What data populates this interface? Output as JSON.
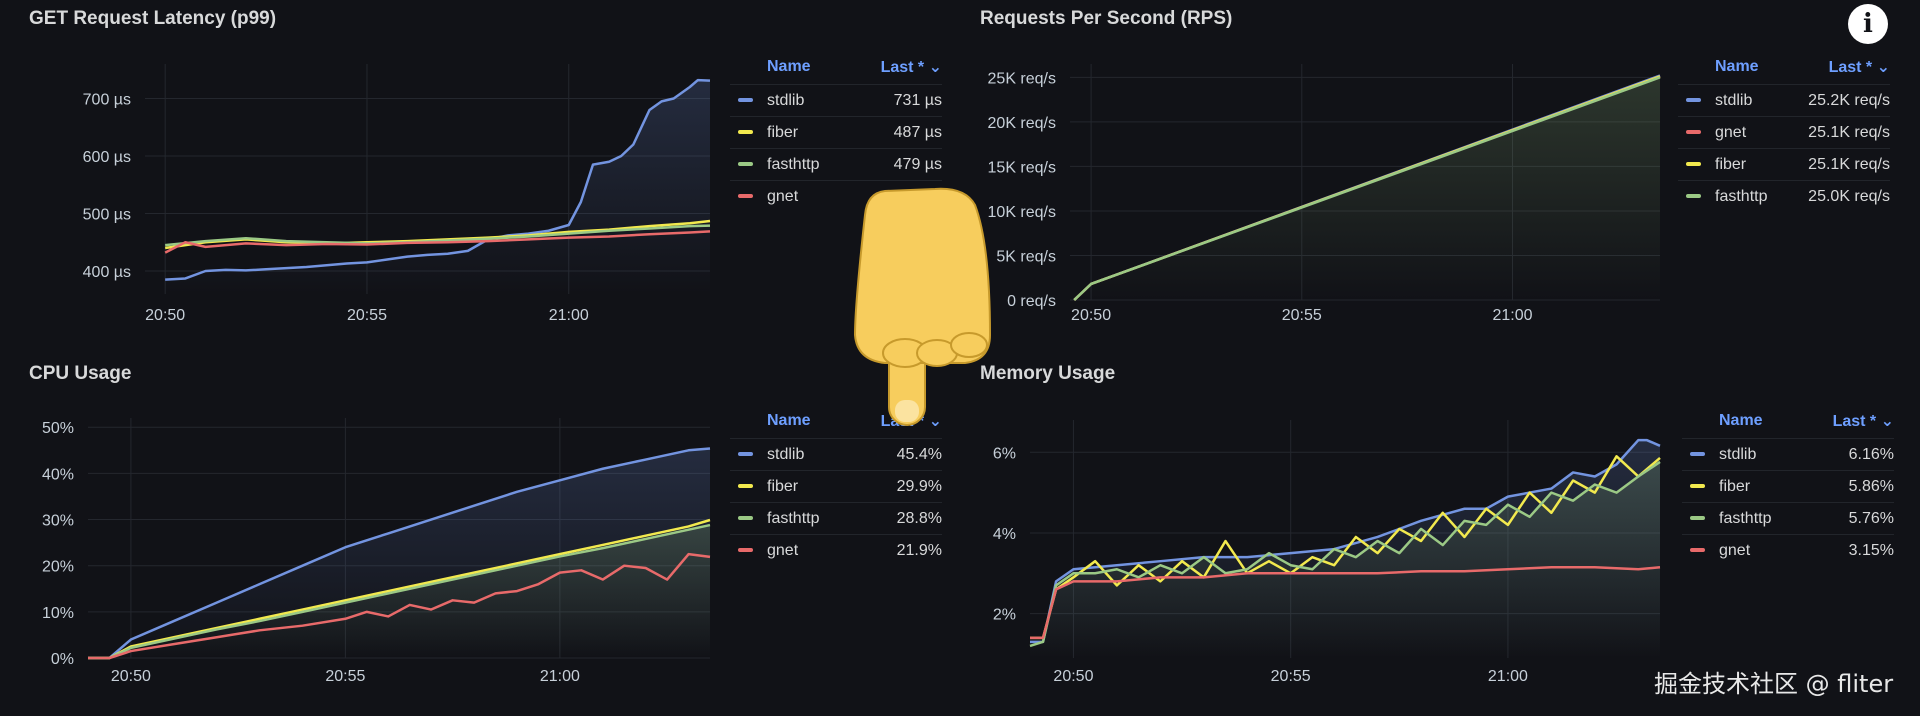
{
  "colors": {
    "stdlib": "#7394e0",
    "fiber": "#f2e94e",
    "fasthttp": "#9bc985",
    "gnet": "#e86a6a",
    "grid": "#24272e",
    "header": "#6e9fff"
  },
  "icons": {
    "info": "info-icon",
    "pointer": "pointing-hand-icon"
  },
  "info_glyph": "i",
  "watermark": "掘金技术社区 @ fliter",
  "panels": [
    {
      "id": "latency",
      "title": "GET Request Latency (p99)",
      "legend": {
        "name_header": "Name",
        "last_header": "Last * ⌄",
        "rows": [
          {
            "name": "stdlib",
            "value": "731 µs",
            "color": "#7394e0"
          },
          {
            "name": "fiber",
            "value": "487 µs",
            "color": "#f2e94e"
          },
          {
            "name": "fasthttp",
            "value": "479 µs",
            "color": "#9bc985"
          },
          {
            "name": "gnet",
            "value": "469 µs",
            "color": "#e86a6a"
          }
        ]
      }
    },
    {
      "id": "rps",
      "title": "Requests Per Second (RPS)",
      "legend": {
        "name_header": "Name",
        "last_header": "Last * ⌄",
        "rows": [
          {
            "name": "stdlib",
            "value": "25.2K req/s",
            "color": "#7394e0"
          },
          {
            "name": "gnet",
            "value": "25.1K req/s",
            "color": "#e86a6a"
          },
          {
            "name": "fiber",
            "value": "25.1K req/s",
            "color": "#f2e94e"
          },
          {
            "name": "fasthttp",
            "value": "25.0K req/s",
            "color": "#9bc985"
          }
        ]
      }
    },
    {
      "id": "cpu",
      "title": "CPU Usage",
      "legend": {
        "name_header": "Name",
        "last_header": "Last * ⌄",
        "rows": [
          {
            "name": "stdlib",
            "value": "45.4%",
            "color": "#7394e0"
          },
          {
            "name": "fiber",
            "value": "29.9%",
            "color": "#f2e94e"
          },
          {
            "name": "fasthttp",
            "value": "28.8%",
            "color": "#9bc985"
          },
          {
            "name": "gnet",
            "value": "21.9%",
            "color": "#e86a6a"
          }
        ]
      }
    },
    {
      "id": "memory",
      "title": "Memory Usage",
      "legend": {
        "name_header": "Name",
        "last_header": "Last * ⌄",
        "rows": [
          {
            "name": "stdlib",
            "value": "6.16%",
            "color": "#7394e0"
          },
          {
            "name": "fiber",
            "value": "5.86%",
            "color": "#f2e94e"
          },
          {
            "name": "fasthttp",
            "value": "5.76%",
            "color": "#9bc985"
          },
          {
            "name": "gnet",
            "value": "3.15%",
            "color": "#e86a6a"
          }
        ]
      }
    }
  ],
  "chart_data": [
    {
      "id": "latency",
      "type": "line",
      "x_ticks": [
        "20:50",
        "20:55",
        "21:00"
      ],
      "x_tick_values": [
        0,
        5,
        10
      ],
      "xlim": [
        -0.5,
        13.5
      ],
      "y_ticks": [
        "400 µs",
        "500 µs",
        "600 µs",
        "700 µs"
      ],
      "y_tick_values": [
        400,
        500,
        600,
        700
      ],
      "ylim": [
        360,
        760
      ],
      "series": [
        {
          "name": "stdlib",
          "color": "#7394e0",
          "fill": true,
          "x": [
            0,
            0.5,
            1,
            1.5,
            2,
            2.5,
            3,
            3.5,
            4,
            4.5,
            5,
            5.5,
            6,
            6.5,
            7,
            7.5,
            8,
            8.5,
            9,
            9.5,
            10,
            10.3,
            10.6,
            11,
            11.3,
            11.6,
            12,
            12.3,
            12.6,
            13,
            13.2,
            13.5
          ],
          "y": [
            385,
            387,
            400,
            402,
            401,
            403,
            405,
            407,
            410,
            413,
            415,
            420,
            425,
            428,
            430,
            435,
            455,
            462,
            465,
            470,
            480,
            520,
            585,
            590,
            600,
            620,
            680,
            695,
            700,
            720,
            732,
            731
          ]
        },
        {
          "name": "fiber",
          "color": "#f2e94e",
          "fill": false,
          "x": [
            0,
            1,
            2,
            3,
            4,
            5,
            6,
            7,
            8,
            9,
            10,
            11,
            12,
            13,
            13.5
          ],
          "y": [
            440,
            450,
            455,
            450,
            448,
            450,
            452,
            455,
            458,
            462,
            468,
            472,
            478,
            483,
            487
          ]
        },
        {
          "name": "fasthttp",
          "color": "#9bc985",
          "fill": false,
          "x": [
            0,
            1,
            2,
            3,
            4,
            5,
            6,
            7,
            8,
            9,
            10,
            11,
            12,
            13,
            13.5
          ],
          "y": [
            445,
            452,
            457,
            452,
            450,
            448,
            450,
            453,
            456,
            460,
            465,
            470,
            474,
            478,
            479
          ]
        },
        {
          "name": "gnet",
          "color": "#e86a6a",
          "fill": false,
          "x": [
            0,
            0.5,
            1,
            2,
            3,
            4,
            5,
            6,
            7,
            8,
            9,
            10,
            11,
            12,
            13,
            13.5
          ],
          "y": [
            432,
            450,
            442,
            448,
            445,
            447,
            446,
            449,
            450,
            452,
            455,
            458,
            460,
            464,
            467,
            469
          ]
        }
      ]
    },
    {
      "id": "rps",
      "type": "area",
      "x_ticks": [
        "20:50",
        "20:55",
        "21:00"
      ],
      "x_tick_values": [
        0,
        5,
        10
      ],
      "xlim": [
        -0.5,
        13.5
      ],
      "y_ticks": [
        "0 req/s",
        "5K req/s",
        "10K req/s",
        "15K req/s",
        "20K req/s",
        "25K req/s"
      ],
      "y_tick_values": [
        0,
        5000,
        10000,
        15000,
        20000,
        25000
      ],
      "ylim": [
        0,
        26500
      ],
      "series": [
        {
          "name": "stdlib",
          "color": "#7394e0",
          "fill": false,
          "x": [
            -0.4,
            0,
            13.5
          ],
          "y": [
            0,
            1800,
            25200
          ]
        },
        {
          "name": "gnet",
          "color": "#e86a6a",
          "fill": false,
          "x": [
            -0.4,
            0,
            13.5
          ],
          "y": [
            0,
            1800,
            25100
          ]
        },
        {
          "name": "fiber",
          "color": "#f2e94e",
          "fill": false,
          "x": [
            -0.4,
            0,
            13.5
          ],
          "y": [
            0,
            1800,
            25100
          ]
        },
        {
          "name": "fasthttp",
          "color": "#9bc985",
          "fill": true,
          "x": [
            -0.4,
            0,
            13.5
          ],
          "y": [
            0,
            1800,
            25000
          ]
        }
      ]
    },
    {
      "id": "cpu",
      "type": "line",
      "x_ticks": [
        "20:50",
        "20:55",
        "21:00"
      ],
      "x_tick_values": [
        0,
        5,
        10
      ],
      "xlim": [
        -1,
        13.5
      ],
      "y_ticks": [
        "0%",
        "10%",
        "20%",
        "30%",
        "40%",
        "50%"
      ],
      "y_tick_values": [
        0,
        10,
        20,
        30,
        40,
        50
      ],
      "ylim": [
        0,
        52
      ],
      "series": [
        {
          "name": "stdlib",
          "color": "#7394e0",
          "fill": true,
          "x": [
            -1,
            -0.5,
            0,
            1,
            2,
            3,
            4,
            5,
            6,
            7,
            8,
            9,
            10,
            11,
            12,
            13,
            13.5
          ],
          "y": [
            0,
            0,
            4,
            8,
            12,
            16,
            20,
            24,
            27,
            30,
            33,
            36,
            38.5,
            41,
            43,
            45,
            45.4
          ]
        },
        {
          "name": "fiber",
          "color": "#f2e94e",
          "fill": false,
          "x": [
            -1,
            -0.5,
            0,
            1,
            2,
            3,
            4,
            5,
            6,
            7,
            8,
            9,
            10,
            11,
            12,
            13,
            13.5
          ],
          "y": [
            0,
            0,
            2.5,
            4.5,
            6.5,
            8.5,
            10.5,
            12.5,
            14.5,
            16.5,
            18.5,
            20.5,
            22.5,
            24.5,
            26.5,
            28.5,
            29.9
          ]
        },
        {
          "name": "fasthttp",
          "color": "#9bc985",
          "fill": true,
          "x": [
            -1,
            -0.5,
            0,
            1,
            2,
            3,
            4,
            5,
            6,
            7,
            8,
            9,
            10,
            11,
            12,
            13,
            13.5
          ],
          "y": [
            0,
            0,
            2.2,
            4.2,
            6.2,
            8,
            10,
            12,
            14,
            16,
            18,
            20,
            22,
            23.8,
            25.8,
            27.8,
            28.8
          ]
        },
        {
          "name": "gnet",
          "color": "#e86a6a",
          "fill": false,
          "x": [
            -1,
            -0.5,
            0,
            1,
            2,
            3,
            4,
            5,
            5.5,
            6,
            6.5,
            7,
            7.5,
            8,
            8.5,
            9,
            9.5,
            10,
            10.5,
            11,
            11.5,
            12,
            12.5,
            13,
            13.5
          ],
          "y": [
            0,
            0,
            1.5,
            3,
            4.5,
            6,
            7,
            8.5,
            10,
            9,
            11.5,
            10.5,
            12.5,
            12,
            14,
            14.5,
            16,
            18.5,
            19,
            17,
            20,
            19.5,
            17,
            22.5,
            21.9
          ]
        }
      ]
    },
    {
      "id": "memory",
      "type": "line",
      "x_ticks": [
        "20:50",
        "20:55",
        "21:00"
      ],
      "x_tick_values": [
        0,
        5,
        10
      ],
      "xlim": [
        -1,
        13.5
      ],
      "y_ticks": [
        "2%",
        "4%",
        "6%"
      ],
      "y_tick_values": [
        2,
        4,
        6
      ],
      "ylim": [
        0.9,
        6.8
      ],
      "series": [
        {
          "name": "stdlib",
          "color": "#7394e0",
          "fill": true,
          "x": [
            -1,
            -0.7,
            -0.4,
            0,
            1,
            2,
            3,
            4,
            5,
            6,
            7,
            8,
            9,
            9.5,
            10,
            11,
            11.5,
            12,
            12.5,
            13,
            13.2,
            13.5
          ],
          "y": [
            1.3,
            1.3,
            2.8,
            3.1,
            3.2,
            3.3,
            3.4,
            3.4,
            3.5,
            3.6,
            3.9,
            4.3,
            4.6,
            4.6,
            4.9,
            5.1,
            5.5,
            5.4,
            5.7,
            6.3,
            6.3,
            6.16
          ]
        },
        {
          "name": "fiber",
          "color": "#f2e94e",
          "fill": false,
          "x": [
            -1,
            -0.7,
            -0.4,
            0,
            0.5,
            1,
            1.5,
            2,
            2.5,
            3,
            3.5,
            4,
            4.5,
            5,
            5.5,
            6,
            6.5,
            7,
            7.5,
            8,
            8.5,
            9,
            9.5,
            10,
            10.5,
            11,
            11.5,
            12,
            12.5,
            13,
            13.5
          ],
          "y": [
            1.4,
            1.4,
            2.6,
            2.9,
            3.3,
            2.7,
            3.2,
            2.8,
            3.3,
            2.9,
            3.8,
            3.0,
            3.3,
            3.0,
            3.4,
            3.2,
            3.9,
            3.5,
            4.1,
            3.8,
            4.5,
            3.9,
            4.6,
            4.2,
            5.0,
            4.5,
            5.3,
            5.0,
            5.9,
            5.4,
            5.86
          ]
        },
        {
          "name": "fasthttp",
          "color": "#9bc985",
          "fill": true,
          "x": [
            -1,
            -0.7,
            -0.4,
            0,
            0.5,
            1,
            1.5,
            2,
            2.5,
            3,
            3.5,
            4,
            4.5,
            5,
            5.5,
            6,
            6.5,
            7,
            7.5,
            8,
            8.5,
            9,
            9.5,
            10,
            10.5,
            11,
            11.5,
            12,
            12.5,
            13,
            13.5
          ],
          "y": [
            1.2,
            1.3,
            2.7,
            3.0,
            3.0,
            3.1,
            2.9,
            3.2,
            3.0,
            3.4,
            3.0,
            3.1,
            3.5,
            3.2,
            3.1,
            3.6,
            3.4,
            3.8,
            3.5,
            4.1,
            3.7,
            4.3,
            4.2,
            4.7,
            4.4,
            5.0,
            4.8,
            5.2,
            5.0,
            5.4,
            5.76
          ]
        },
        {
          "name": "gnet",
          "color": "#e86a6a",
          "fill": false,
          "x": [
            -1,
            -0.7,
            -0.4,
            0,
            1,
            2,
            3,
            4,
            5,
            6,
            7,
            8,
            9,
            10,
            11,
            12,
            13,
            13.5
          ],
          "y": [
            1.4,
            1.4,
            2.6,
            2.8,
            2.8,
            2.9,
            2.9,
            3.0,
            3.0,
            3.0,
            3.0,
            3.05,
            3.05,
            3.1,
            3.15,
            3.15,
            3.1,
            3.15
          ]
        }
      ]
    }
  ]
}
